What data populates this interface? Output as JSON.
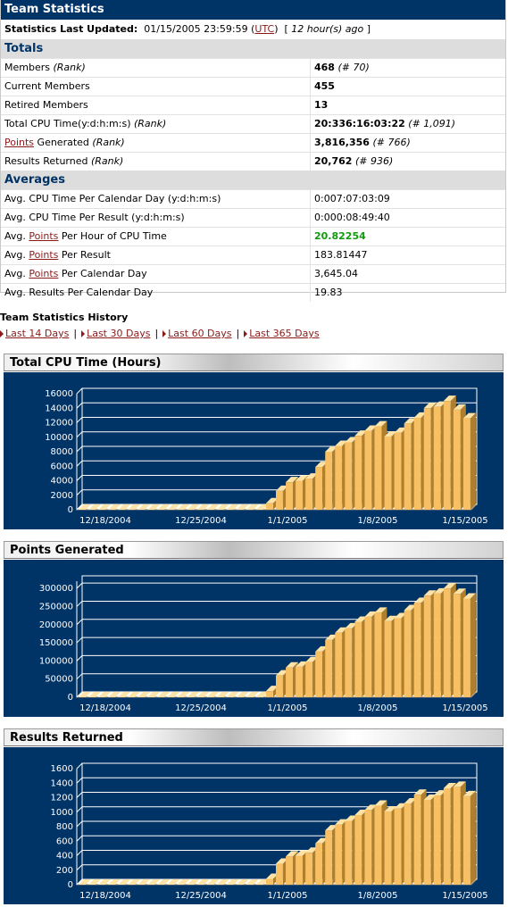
{
  "header": {
    "title": "Team Statistics",
    "last_updated_label": "Statistics Last Updated:",
    "last_updated_value": "01/15/2005 23:59:59",
    "utc_link": "UTC",
    "ago_text": "12 hour(s) ago"
  },
  "totals": {
    "heading": "Totals",
    "rows": [
      {
        "label": "Members",
        "rank_label": "(Rank)",
        "value": "468",
        "rank": "(# 70)"
      },
      {
        "label": "Current Members",
        "value": "455"
      },
      {
        "label": "Retired Members",
        "value": "13"
      },
      {
        "label": "Total CPU Time(y:d:h:m:s)",
        "rank_label": "(Rank)",
        "value": "20:336:16:03:22",
        "rank": "(# 1,091)"
      },
      {
        "link": "Points",
        "label": " Generated",
        "rank_label": "(Rank)",
        "value": "3,816,356",
        "rank": "(# 766)"
      },
      {
        "label": "Results Returned",
        "rank_label": "(Rank)",
        "value": "20,762",
        "rank": "(# 936)"
      }
    ]
  },
  "averages": {
    "heading": "Averages",
    "rows": [
      {
        "pre": "Avg. CPU Time Per Calendar Day (y:d:h:m:s)",
        "value": "0:007:07:03:09"
      },
      {
        "pre": "Avg. CPU Time Per Result (y:d:h:m:s)",
        "value": "0:000:08:49:40"
      },
      {
        "pre": "Avg. ",
        "link": "Points",
        "post": " Per Hour of CPU Time",
        "value": "20.82254"
      },
      {
        "pre": "Avg. ",
        "link": "Points",
        "post": " Per Result",
        "value": "183.81447"
      },
      {
        "pre": "Avg. ",
        "link": "Points",
        "post": " Per Calendar Day",
        "value": "3,645.04"
      },
      {
        "pre": "Avg. Results Per Calendar Day",
        "value": "19.83"
      }
    ]
  },
  "history": {
    "title": "Team Statistics History",
    "links": [
      "Last 14 Days",
      "Last 30 Days",
      "Last 60 Days",
      "Last 365 Days"
    ],
    "separator": "|"
  },
  "colors": {
    "header_bg": "#003366",
    "bar_front": "#f7c065",
    "bar_side": "#b07f2c",
    "bar_top": "#ffe3a6",
    "highlight_value": "#119911"
  },
  "chart_data": [
    {
      "type": "bar",
      "title": "Total CPU Time (Hours)",
      "x_tick_labels": [
        "12/18/2004",
        "12/25/2004",
        "1/1/2005",
        "1/8/2005",
        "1/15/2005"
      ],
      "y_ticks": [
        "0",
        "2000",
        "4000",
        "6000",
        "8000",
        "10000",
        "12000",
        "14000",
        "16000"
      ],
      "ylim": [
        0,
        16000
      ],
      "values": [
        0,
        0,
        0,
        0,
        0,
        0,
        0,
        0,
        0,
        0,
        0,
        0,
        0,
        0,
        0,
        0,
        0,
        0,
        0,
        900,
        2600,
        3800,
        4000,
        4300,
        5900,
        8000,
        8800,
        9300,
        10200,
        10900,
        11500,
        10100,
        10600,
        11900,
        12700,
        14000,
        14200,
        15000,
        13800,
        12600
      ]
    },
    {
      "type": "bar",
      "title": "Points Generated",
      "x_tick_labels": [
        "12/18/2004",
        "12/25/2004",
        "1/1/2005",
        "1/8/2005",
        "1/15/2005"
      ],
      "y_ticks": [
        "0",
        "50000",
        "100000",
        "150000",
        "200000",
        "250000",
        "300000"
      ],
      "ylim": [
        0,
        320000
      ],
      "values": [
        0,
        0,
        0,
        0,
        0,
        0,
        0,
        0,
        0,
        0,
        0,
        0,
        0,
        0,
        0,
        0,
        0,
        0,
        0,
        17000,
        60000,
        82000,
        84000,
        97000,
        126000,
        158000,
        178000,
        190000,
        208000,
        222000,
        233000,
        210000,
        218000,
        240000,
        260000,
        280000,
        286000,
        300000,
        285000,
        272000
      ]
    },
    {
      "type": "bar",
      "title": "Results Returned",
      "x_tick_labels": [
        "12/18/2004",
        "12/25/2004",
        "1/1/2005",
        "1/8/2005",
        "1/15/2005"
      ],
      "y_ticks": [
        "0",
        "200",
        "400",
        "600",
        "800",
        "1000",
        "1200",
        "1400",
        "1600"
      ],
      "ylim": [
        0,
        1600
      ],
      "values": [
        0,
        0,
        0,
        0,
        0,
        0,
        0,
        0,
        0,
        0,
        0,
        0,
        0,
        0,
        0,
        0,
        0,
        0,
        0,
        80,
        290,
        390,
        400,
        440,
        570,
        750,
        830,
        880,
        960,
        1030,
        1090,
        1010,
        1050,
        1120,
        1240,
        1170,
        1230,
        1330,
        1350,
        1220
      ]
    }
  ]
}
